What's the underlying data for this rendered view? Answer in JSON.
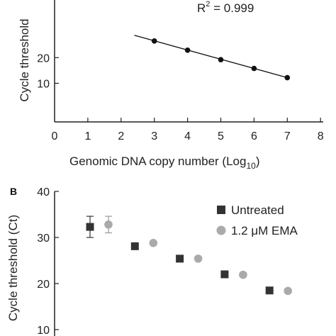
{
  "chart_data": [
    {
      "panel": "",
      "type": "scatter",
      "xlabel": "Genomic DNA copy number (Log",
      "xlabel_sub": "10",
      "xlabel_end": ")",
      "ylabel": "Cycle threshold",
      "xlim": [
        0,
        8
      ],
      "ylim": [
        5,
        35
      ],
      "xticks": [
        "0",
        "1",
        "2",
        "3",
        "4",
        "5",
        "6",
        "7",
        "8"
      ],
      "yticks": [
        "10",
        "20"
      ],
      "annotation": {
        "prefix": "R",
        "sup": "2",
        "suffix": " = 0.999"
      },
      "series": [
        {
          "x": [
            3,
            4,
            5,
            6,
            7
          ],
          "y": [
            26.5,
            22.9,
            19.2,
            15.8,
            12.2
          ],
          "marker": "circle",
          "color": "#111111"
        }
      ],
      "fit_line": {
        "x": [
          2.4,
          7.0
        ],
        "y": [
          28.7,
          12.2
        ],
        "color": "#111111"
      }
    },
    {
      "panel": "B",
      "type": "scatter",
      "xlabel": "",
      "ylabel": "Cycle threshold (Ct)",
      "ylim": [
        10,
        40
      ],
      "yticks": [
        "10",
        "20",
        "30",
        "40"
      ],
      "legend_position": "top-right",
      "series": [
        {
          "name": "Untreated",
          "marker": "square",
          "color": "#333333",
          "x": [
            1,
            2,
            3,
            4,
            5
          ],
          "y": [
            32.3,
            28.1,
            25.4,
            22.0,
            18.5
          ],
          "err": [
            2.3,
            0,
            0,
            0,
            0
          ]
        },
        {
          "name": "1.2 μM EMA",
          "marker": "circle",
          "color": "#aaaaaa",
          "x": [
            1,
            2,
            3,
            4,
            5
          ],
          "y": [
            32.8,
            28.8,
            25.4,
            21.9,
            18.4
          ],
          "err": [
            1.8,
            0,
            0,
            0,
            0
          ]
        }
      ]
    }
  ]
}
